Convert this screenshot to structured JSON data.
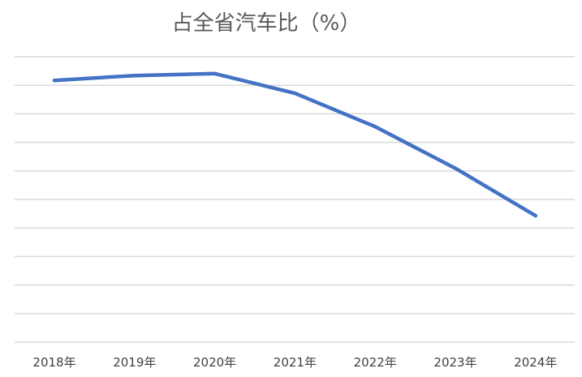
{
  "colors": {
    "series": "#4472c4",
    "grid": "#d9d9d9",
    "title": "#595959",
    "axis_text": "#404040",
    "background": "#ffffff"
  },
  "chart_data": {
    "type": "line",
    "title": "占全省汽车比（%）",
    "xlabel": "",
    "ylabel": "",
    "categories": [
      "2018年",
      "2019年",
      "2020年",
      "2021年",
      "2022年",
      "2023年",
      "2024年"
    ],
    "series": [
      {
        "values": [
          9.17,
          9.34,
          9.41,
          8.72,
          7.55,
          6.09,
          4.43
        ]
      }
    ],
    "ylim": [
      0,
      10
    ],
    "y_ticks_visible": false,
    "grid": true,
    "legend": "none"
  }
}
